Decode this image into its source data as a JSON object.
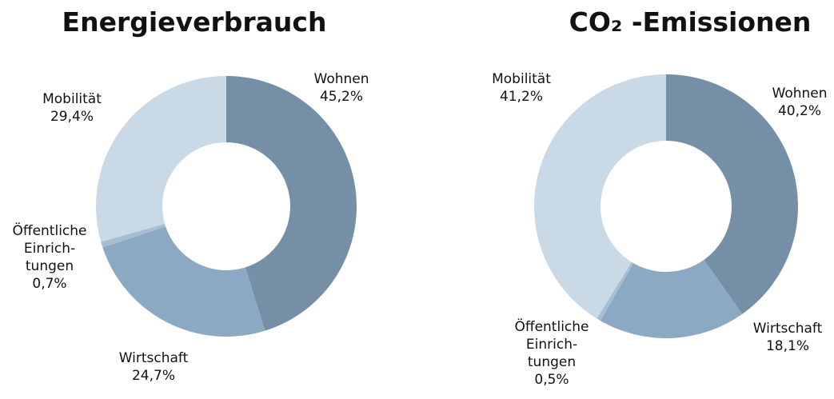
{
  "chart_data": [
    {
      "type": "pie",
      "title": "Energieverbrauch",
      "categories": [
        "Wohnen",
        "Wirtschaft",
        "Öffentliche Einrich- tungen",
        "Mobilität"
      ],
      "values": [
        45.2,
        24.7,
        0.7,
        29.4
      ],
      "value_labels": [
        "45,2%",
        "24,7%",
        "0,7%",
        "29,4%"
      ],
      "colors": [
        "#758fa6",
        "#8ca9c3",
        "#a7bdd2",
        "#c9d9e6"
      ]
    },
    {
      "type": "pie",
      "title": "CO₂ -Emissionen",
      "categories": [
        "Wohnen",
        "Wirtschaft",
        "Öffentliche Einrich- tungen",
        "Mobilität"
      ],
      "values": [
        40.2,
        18.1,
        0.5,
        41.2
      ],
      "value_labels": [
        "40,2%",
        "18,1%",
        "0,5%",
        "41,2%"
      ],
      "colors": [
        "#758fa6",
        "#8ca9c3",
        "#a7bdd2",
        "#c9d9e6"
      ]
    }
  ]
}
